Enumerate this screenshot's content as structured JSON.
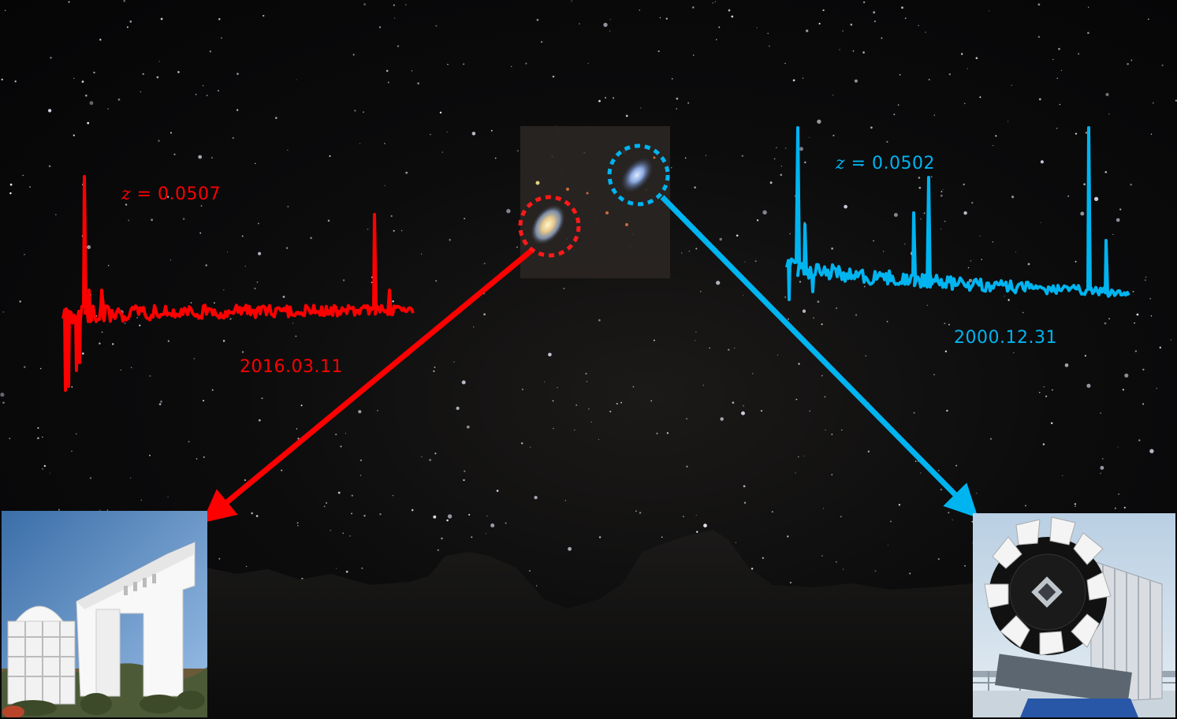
{
  "left_source": {
    "redshift_symbol": "z",
    "redshift_value": "= 0.0507",
    "date": "2016.03.11",
    "color": "#ff0000"
  },
  "right_source": {
    "redshift_symbol": "z",
    "redshift_value": "= 0.0502",
    "date": "2000.12.31",
    "color": "#00b4f0"
  },
  "icons": {
    "left_telescope": "lamost-observatory-photo",
    "right_telescope": "sloan-telescope-photo",
    "background": "night-sky-mountains-photo"
  }
}
